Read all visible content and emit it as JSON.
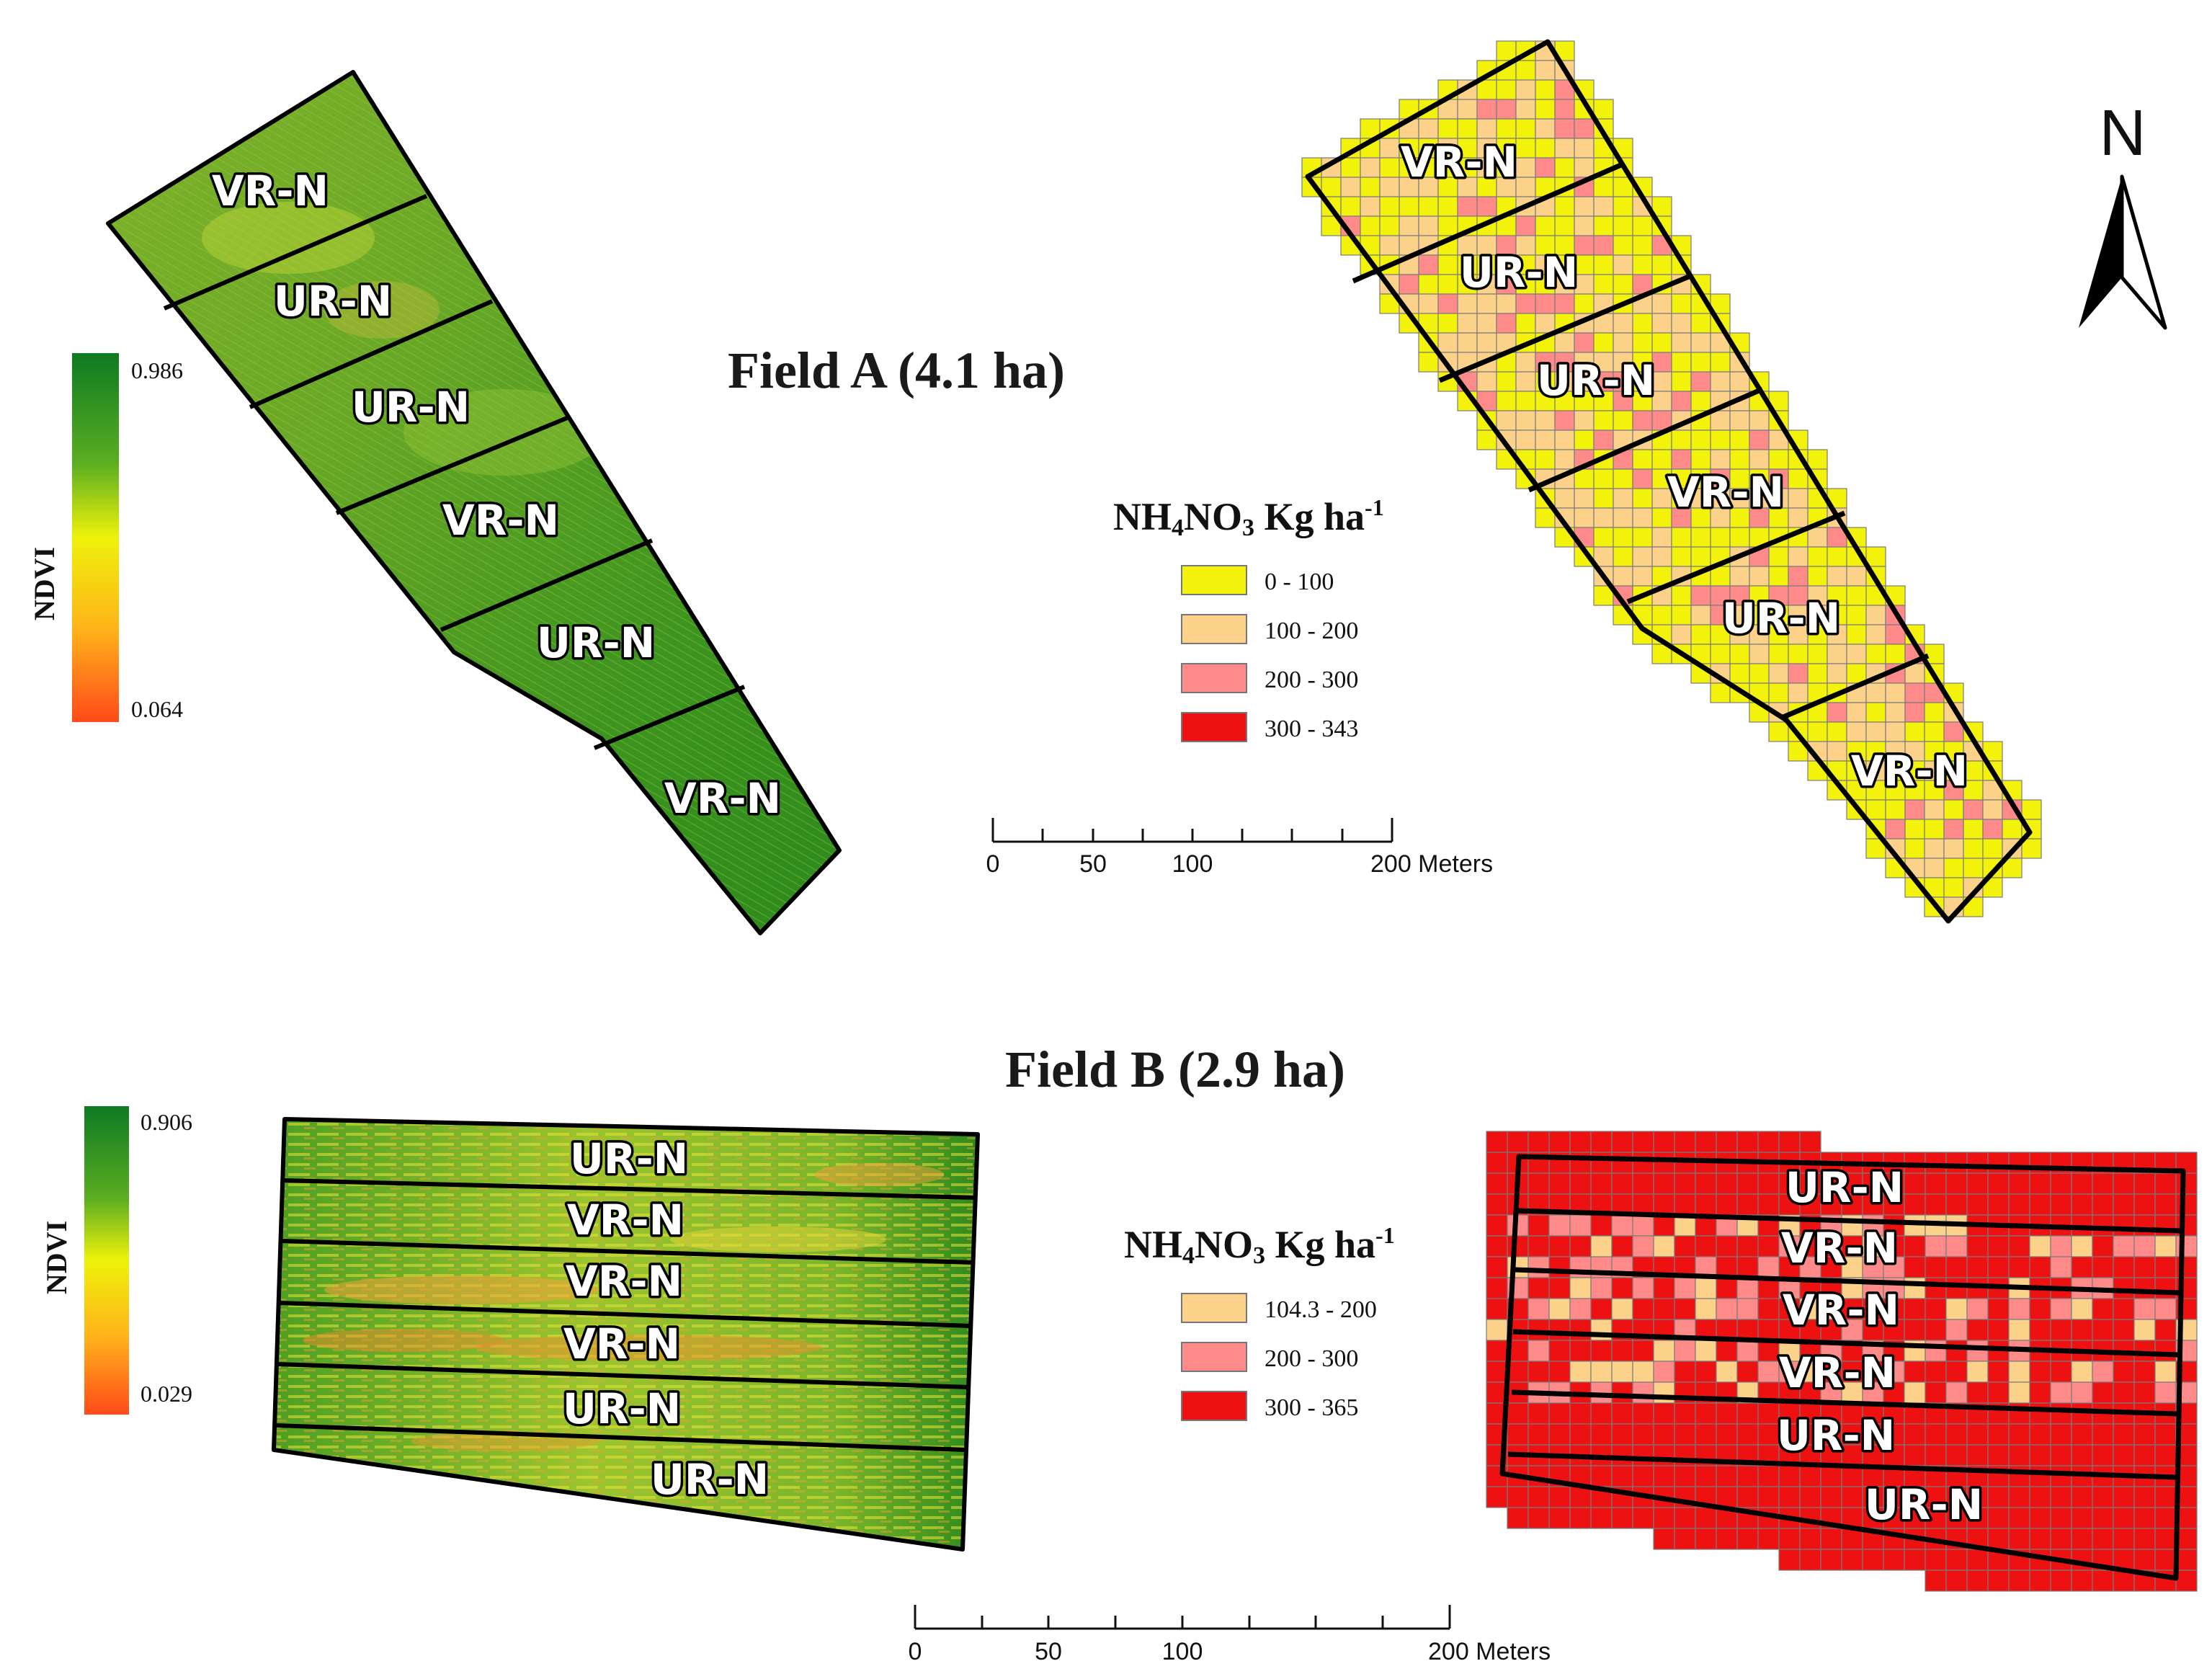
{
  "field_a": {
    "title": "Field A (4.1 ha)",
    "ndvi_legend": {
      "label": "NDVI",
      "max": "0.986",
      "min": "0.064",
      "colors": [
        "#1a8a1a",
        "#7ec22a",
        "#f2f20a",
        "#ffa018",
        "#ff4a1a"
      ]
    },
    "ndvi_plots": [
      "VR-N",
      "UR-N",
      "UR-N",
      "VR-N",
      "UR-N",
      "VR-N"
    ],
    "rate_plots": [
      "VR-N",
      "UR-N",
      "UR-N",
      "VR-N",
      "UR-N",
      "VR-N"
    ],
    "rate_legend": {
      "title_main": "NH",
      "title_sub1": "4",
      "title_mid": "NO",
      "title_sub2": "3",
      "title_unit": " Kg ha",
      "title_sup": "-1",
      "classes": [
        {
          "label": "0 - 100",
          "color": "#f2f20a"
        },
        {
          "label": "100 - 200",
          "color": "#fcd28a"
        },
        {
          "label": "200 - 300",
          "color": "#ff8a8a"
        },
        {
          "label": "300 - 343",
          "color": "#ee1111"
        }
      ]
    },
    "scale_bar": {
      "ticks": [
        "0",
        "50",
        "100",
        "200 Meters"
      ]
    }
  },
  "field_b": {
    "title": "Field B (2.9 ha)",
    "ndvi_legend": {
      "label": "NDVI",
      "max": "0.906",
      "min": "0.029"
    },
    "ndvi_plots": [
      "UR-N",
      "VR-N",
      "VR-N",
      "VR-N",
      "UR-N",
      "UR-N"
    ],
    "rate_plots": [
      "UR-N",
      "VR-N",
      "VR-N",
      "VR-N",
      "UR-N",
      "UR-N"
    ],
    "rate_legend": {
      "title_main": "NH",
      "title_sub1": "4",
      "title_mid": "NO",
      "title_sub2": "3",
      "title_unit": " Kg ha",
      "title_sup": "-1",
      "classes": [
        {
          "label": "104.3 - 200",
          "color": "#fcd28a"
        },
        {
          "label": "200 - 300",
          "color": "#ff8a8a"
        },
        {
          "label": "300 - 365",
          "color": "#ee1111"
        }
      ]
    },
    "scale_bar": {
      "ticks": [
        "0",
        "50",
        "100",
        "200 Meters"
      ]
    }
  },
  "north_arrow": {
    "label": "N"
  },
  "colors": {
    "ndvi_dark": "#2a8a1e",
    "ndvi_mid": "#5aa52a",
    "ndvi_light": "#a6cc3a",
    "ndvi_stress": "#e8c030",
    "grid_line": "#777777"
  }
}
